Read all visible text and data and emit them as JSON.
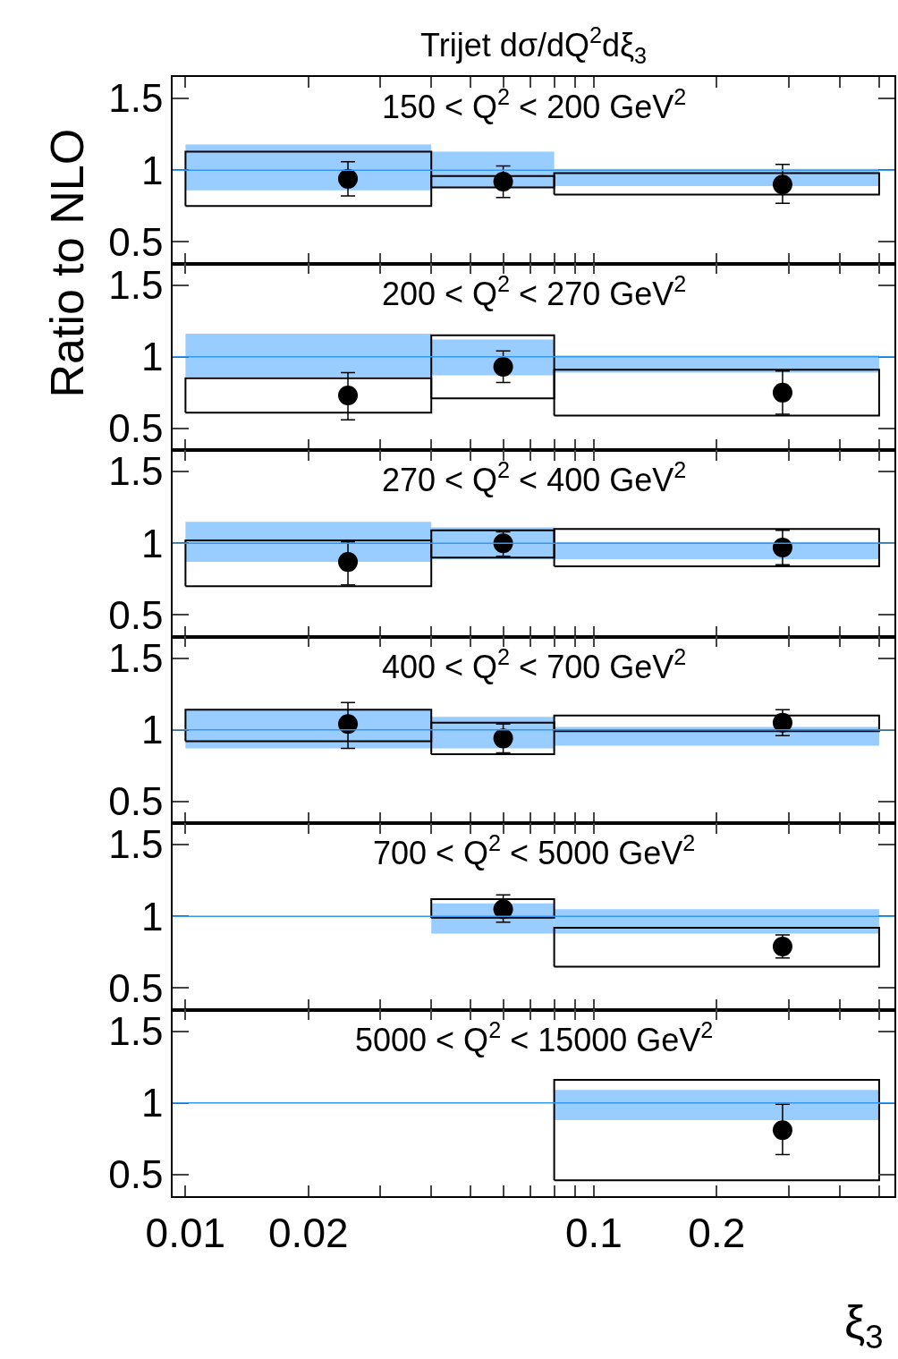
{
  "chart_data": [
    {
      "type": "scatter",
      "title": "Trijet dσ/dQ$^{2}$dξ$_{3}$",
      "ylabel": "Ratio to NLO",
      "annotations": [
        "150 < Q$^{2}$ < 200 GeV$^{2}$"
      ],
      "series": [
        {
          "type": "histogram",
          "color": "#99ccff",
          "bins": [
            0.01,
            0.04,
            0.08,
            0.5
          ],
          "base": [
            0.86,
            0.88,
            0.89
          ],
          "values": [
            0.32,
            0.25,
            0.12
          ]
        },
        {
          "type": "histogram",
          "color": "#000000",
          "line_style": "solid",
          "bins": [
            0.01,
            0.04,
            0.08,
            0.5
          ],
          "base": [
            0.75,
            0.88,
            0.83
          ],
          "values": [
            0.38,
            0.08,
            0.15
          ]
        },
        {
          "color": "#000000",
          "x": [
            0.025,
            0.06,
            0.29
          ],
          "values": [
            0.94,
            0.92,
            0.9
          ],
          "errors": [
            [
              0.82,
              1.06
            ],
            [
              0.81,
              1.03
            ],
            [
              0.77,
              1.04
            ]
          ]
        }
      ],
      "ref_lines": [
        {
          "axis": "y",
          "value": 1,
          "color": "#3399ee"
        }
      ],
      "xlim": [
        0.0093,
        0.545
      ],
      "xticks": [
        {
          "value": 0.01,
          "label": null
        },
        {
          "value": 0.02,
          "label": null
        },
        {
          "value": 0.03,
          "label": null
        },
        {
          "value": 0.04,
          "label": null
        },
        {
          "value": 0.05,
          "label": null
        },
        {
          "value": 0.06,
          "label": null
        },
        {
          "value": 0.07,
          "label": null
        },
        {
          "value": 0.08,
          "label": null
        },
        {
          "value": 0.09,
          "label": null
        },
        {
          "value": 0.1,
          "label": null
        },
        {
          "value": 0.2,
          "label": null
        },
        {
          "value": 0.3,
          "label": null
        },
        {
          "value": 0.4,
          "label": null
        },
        {
          "value": 0.5,
          "label": null
        }
      ],
      "log": "x",
      "ylim": [
        0.35,
        1.65
      ],
      "yticks": [
        0.5,
        1,
        1.5
      ],
      "tick_labels": "y",
      "marker": "circle"
    },
    {
      "type": "scatter",
      "annotations": [
        "200 < Q$^{2}$ < 270 GeV$^{2}$"
      ],
      "series": [
        {
          "type": "histogram",
          "color": "#99ccff",
          "bins": [
            0.01,
            0.04,
            0.08,
            0.5
          ],
          "base": [
            0.86,
            0.87,
            0.89
          ],
          "values": [
            0.3,
            0.25,
            0.12
          ]
        },
        {
          "type": "histogram",
          "color": "#000000",
          "line_style": "solid",
          "bins": [
            0.01,
            0.04,
            0.08,
            0.5
          ],
          "base": [
            0.61,
            0.71,
            0.59
          ],
          "values": [
            0.24,
            0.44,
            0.32
          ]
        },
        {
          "color": "#000000",
          "x": [
            0.025,
            0.06,
            0.29
          ],
          "values": [
            0.73,
            0.93,
            0.75
          ],
          "errors": [
            [
              0.56,
              0.89
            ],
            [
              0.82,
              1.04
            ],
            [
              0.6,
              0.9
            ]
          ]
        }
      ],
      "ref_lines": [
        {
          "axis": "y",
          "value": 1,
          "color": "#3399ee"
        }
      ],
      "xlim": [
        0.0093,
        0.545
      ],
      "xticks": [
        {
          "value": 0.01,
          "label": null
        },
        {
          "value": 0.02,
          "label": null
        },
        {
          "value": 0.03,
          "label": null
        },
        {
          "value": 0.04,
          "label": null
        },
        {
          "value": 0.05,
          "label": null
        },
        {
          "value": 0.06,
          "label": null
        },
        {
          "value": 0.07,
          "label": null
        },
        {
          "value": 0.08,
          "label": null
        },
        {
          "value": 0.09,
          "label": null
        },
        {
          "value": 0.1,
          "label": null
        },
        {
          "value": 0.2,
          "label": null
        },
        {
          "value": 0.3,
          "label": null
        },
        {
          "value": 0.4,
          "label": null
        },
        {
          "value": 0.5,
          "label": null
        }
      ],
      "log": "x",
      "ylim": [
        0.35,
        1.65
      ],
      "yticks": [
        0.5,
        1,
        1.5
      ],
      "tick_labels": "y",
      "marker": "circle"
    },
    {
      "type": "scatter",
      "annotations": [
        "270 < Q$^{2}$ < 400 GeV$^{2}$"
      ],
      "series": [
        {
          "type": "histogram",
          "color": "#99ccff",
          "bins": [
            0.01,
            0.04,
            0.08,
            0.5
          ],
          "base": [
            0.87,
            0.89,
            0.89
          ],
          "values": [
            0.28,
            0.22,
            0.12
          ]
        },
        {
          "type": "histogram",
          "color": "#000000",
          "line_style": "solid",
          "bins": [
            0.01,
            0.04,
            0.08,
            0.5
          ],
          "base": [
            0.7,
            0.9,
            0.84
          ],
          "values": [
            0.32,
            0.19,
            0.26
          ]
        },
        {
          "color": "#000000",
          "x": [
            0.025,
            0.06,
            0.29
          ],
          "values": [
            0.87,
            1.0,
            0.97
          ],
          "errors": [
            [
              0.71,
              1.01
            ],
            [
              0.91,
              1.08
            ],
            [
              0.85,
              1.09
            ]
          ]
        }
      ],
      "ref_lines": [
        {
          "axis": "y",
          "value": 1,
          "color": "#3399ee"
        }
      ],
      "xlim": [
        0.0093,
        0.545
      ],
      "xticks": [
        {
          "value": 0.01,
          "label": null
        },
        {
          "value": 0.02,
          "label": null
        },
        {
          "value": 0.03,
          "label": null
        },
        {
          "value": 0.04,
          "label": null
        },
        {
          "value": 0.05,
          "label": null
        },
        {
          "value": 0.06,
          "label": null
        },
        {
          "value": 0.07,
          "label": null
        },
        {
          "value": 0.08,
          "label": null
        },
        {
          "value": 0.09,
          "label": null
        },
        {
          "value": 0.1,
          "label": null
        },
        {
          "value": 0.2,
          "label": null
        },
        {
          "value": 0.3,
          "label": null
        },
        {
          "value": 0.4,
          "label": null
        },
        {
          "value": 0.5,
          "label": null
        }
      ],
      "log": "x",
      "ylim": [
        0.35,
        1.65
      ],
      "yticks": [
        0.5,
        1,
        1.5
      ],
      "tick_labels": "y",
      "marker": "circle"
    },
    {
      "type": "scatter",
      "annotations": [
        "400 < Q$^{2}$ < 700 GeV$^{2}$"
      ],
      "series": [
        {
          "type": "histogram",
          "color": "#99ccff",
          "bins": [
            0.01,
            0.04,
            0.08,
            0.5
          ],
          "base": [
            0.87,
            0.87,
            0.89
          ],
          "values": [
            0.27,
            0.22,
            0.13
          ]
        },
        {
          "type": "histogram",
          "color": "#000000",
          "line_style": "solid",
          "bins": [
            0.01,
            0.04,
            0.08,
            0.5
          ],
          "base": [
            0.92,
            0.83,
            0.99
          ],
          "values": [
            0.22,
            0.22,
            0.11
          ]
        },
        {
          "color": "#000000",
          "x": [
            0.025,
            0.06,
            0.29
          ],
          "values": [
            1.04,
            0.94,
            1.05
          ],
          "errors": [
            [
              0.87,
              1.19
            ],
            [
              0.84,
              1.04
            ],
            [
              0.96,
              1.14
            ]
          ]
        }
      ],
      "ref_lines": [
        {
          "axis": "y",
          "value": 1,
          "color": "#3399ee"
        }
      ],
      "xlim": [
        0.0093,
        0.545
      ],
      "xticks": [
        {
          "value": 0.01,
          "label": null
        },
        {
          "value": 0.02,
          "label": null
        },
        {
          "value": 0.03,
          "label": null
        },
        {
          "value": 0.04,
          "label": null
        },
        {
          "value": 0.05,
          "label": null
        },
        {
          "value": 0.06,
          "label": null
        },
        {
          "value": 0.07,
          "label": null
        },
        {
          "value": 0.08,
          "label": null
        },
        {
          "value": 0.09,
          "label": null
        },
        {
          "value": 0.1,
          "label": null
        },
        {
          "value": 0.2,
          "label": null
        },
        {
          "value": 0.3,
          "label": null
        },
        {
          "value": 0.4,
          "label": null
        },
        {
          "value": 0.5,
          "label": null
        }
      ],
      "log": "x",
      "ylim": [
        0.35,
        1.65
      ],
      "yticks": [
        0.5,
        1,
        1.5
      ],
      "tick_labels": "y",
      "marker": "circle"
    },
    {
      "type": "scatter",
      "annotations": [
        "700 < Q$^{2}$ < 5000 GeV$^{2}$"
      ],
      "series": [
        {
          "type": "histogram",
          "color": "#99ccff",
          "bins": [
            0.04,
            0.08,
            0.5
          ],
          "base": [
            0.88,
            0.88
          ],
          "values": [
            0.21,
            0.17
          ]
        },
        {
          "type": "histogram",
          "color": "#000000",
          "line_style": "solid",
          "bins": [
            0.04,
            0.08,
            0.5
          ],
          "base": [
            0.99,
            0.65
          ],
          "values": [
            0.13,
            0.27
          ]
        },
        {
          "color": "#000000",
          "x": [
            0.06,
            0.29
          ],
          "values": [
            1.05,
            0.79
          ],
          "errors": [
            [
              0.96,
              1.15
            ],
            [
              0.71,
              0.87
            ]
          ]
        }
      ],
      "ref_lines": [
        {
          "axis": "y",
          "value": 1,
          "color": "#3399ee"
        }
      ],
      "xlim": [
        0.0093,
        0.545
      ],
      "xticks": [
        {
          "value": 0.01,
          "label": null
        },
        {
          "value": 0.02,
          "label": null
        },
        {
          "value": 0.03,
          "label": null
        },
        {
          "value": 0.04,
          "label": null
        },
        {
          "value": 0.05,
          "label": null
        },
        {
          "value": 0.06,
          "label": null
        },
        {
          "value": 0.07,
          "label": null
        },
        {
          "value": 0.08,
          "label": null
        },
        {
          "value": 0.09,
          "label": null
        },
        {
          "value": 0.1,
          "label": null
        },
        {
          "value": 0.2,
          "label": null
        },
        {
          "value": 0.3,
          "label": null
        },
        {
          "value": 0.4,
          "label": null
        },
        {
          "value": 0.5,
          "label": null
        }
      ],
      "log": "x",
      "ylim": [
        0.35,
        1.65
      ],
      "yticks": [
        0.5,
        1,
        1.5
      ],
      "tick_labels": "y",
      "marker": "circle"
    },
    {
      "type": "scatter",
      "xlabel": "ξ$_{3}$",
      "annotations": [
        "5000 < Q$^{2}$ < 15000 GeV$^{2}$"
      ],
      "series": [
        {
          "type": "histogram",
          "color": "#99ccff",
          "bins": [
            0.08,
            0.5
          ],
          "base": [
            0.88
          ],
          "values": [
            0.21
          ]
        },
        {
          "type": "histogram",
          "color": "#000000",
          "line_style": "solid",
          "bins": [
            0.08,
            0.5
          ],
          "base": [
            0.46
          ],
          "values": [
            0.7
          ]
        },
        {
          "color": "#000000",
          "x": [
            0.29
          ],
          "values": [
            0.81
          ],
          "errors": [
            [
              0.64,
              0.99
            ]
          ]
        }
      ],
      "ref_lines": [
        {
          "axis": "y",
          "value": 1,
          "color": "#3399ee"
        }
      ],
      "xlim": [
        0.0093,
        0.545
      ],
      "xticks": [
        0.01,
        0.02,
        {
          "value": 0.03,
          "label": null
        },
        {
          "value": 0.04,
          "label": null
        },
        {
          "value": 0.05,
          "label": null
        },
        {
          "value": 0.06,
          "label": null
        },
        {
          "value": 0.07,
          "label": null
        },
        {
          "value": 0.08,
          "label": null
        },
        {
          "value": 0.09,
          "label": null
        },
        0.1,
        0.2,
        {
          "value": 0.3,
          "label": null
        },
        {
          "value": 0.4,
          "label": null
        },
        {
          "value": 0.5,
          "label": null
        }
      ],
      "log": "x",
      "ylim": [
        0.35,
        1.65
      ],
      "yticks": [
        0.5,
        1,
        1.5
      ],
      "marker": "circle"
    }
  ]
}
